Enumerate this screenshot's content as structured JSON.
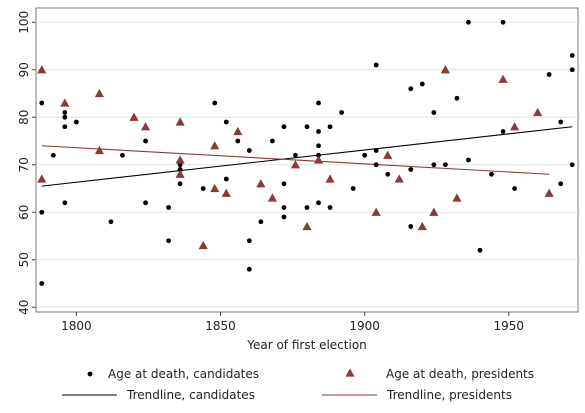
{
  "chart_data": {
    "type": "scatter",
    "title": "",
    "xlabel": "Year of first election",
    "ylabel": "",
    "xlim": [
      1786,
      1974
    ],
    "ylim": [
      39,
      103
    ],
    "xticks": [
      1800,
      1850,
      1900,
      1950
    ],
    "yticks": [
      40,
      50,
      60,
      70,
      80,
      90,
      100
    ],
    "grid": {
      "horizontal": true,
      "vertical": false
    },
    "legend": {
      "position": "bottom",
      "columns": 2
    },
    "series": [
      {
        "name": "Age at death, candidates",
        "marker": "circle",
        "color": "#000000",
        "points": [
          [
            1788,
            83
          ],
          [
            1788,
            60
          ],
          [
            1788,
            45
          ],
          [
            1792,
            72
          ],
          [
            1796,
            81
          ],
          [
            1796,
            80
          ],
          [
            1796,
            78
          ],
          [
            1796,
            62
          ],
          [
            1800,
            79
          ],
          [
            1812,
            58
          ],
          [
            1816,
            72
          ],
          [
            1824,
            75
          ],
          [
            1824,
            62
          ],
          [
            1832,
            61
          ],
          [
            1832,
            54
          ],
          [
            1836,
            70
          ],
          [
            1836,
            69
          ],
          [
            1836,
            66
          ],
          [
            1844,
            65
          ],
          [
            1848,
            83
          ],
          [
            1852,
            79
          ],
          [
            1852,
            67
          ],
          [
            1856,
            75
          ],
          [
            1860,
            73
          ],
          [
            1860,
            54
          ],
          [
            1860,
            48
          ],
          [
            1864,
            58
          ],
          [
            1868,
            75
          ],
          [
            1872,
            78
          ],
          [
            1872,
            66
          ],
          [
            1872,
            61
          ],
          [
            1872,
            59
          ],
          [
            1876,
            72
          ],
          [
            1880,
            78
          ],
          [
            1880,
            61
          ],
          [
            1884,
            83
          ],
          [
            1884,
            77
          ],
          [
            1884,
            74
          ],
          [
            1884,
            72
          ],
          [
            1884,
            62
          ],
          [
            1888,
            78
          ],
          [
            1888,
            61
          ],
          [
            1892,
            81
          ],
          [
            1896,
            65
          ],
          [
            1900,
            72
          ],
          [
            1904,
            91
          ],
          [
            1904,
            73
          ],
          [
            1904,
            70
          ],
          [
            1908,
            68
          ],
          [
            1916,
            86
          ],
          [
            1916,
            69
          ],
          [
            1916,
            57
          ],
          [
            1920,
            87
          ],
          [
            1924,
            81
          ],
          [
            1924,
            70
          ],
          [
            1928,
            70
          ],
          [
            1932,
            84
          ],
          [
            1936,
            100
          ],
          [
            1936,
            71
          ],
          [
            1940,
            52
          ],
          [
            1944,
            68
          ],
          [
            1948,
            100
          ],
          [
            1948,
            77
          ],
          [
            1952,
            65
          ],
          [
            1964,
            89
          ],
          [
            1968,
            79
          ],
          [
            1968,
            66
          ],
          [
            1972,
            93
          ],
          [
            1972,
            90
          ],
          [
            1972,
            70
          ]
        ]
      },
      {
        "name": "Age at death, presidents",
        "marker": "triangle",
        "color": "#8b3a3a",
        "points": [
          [
            1788,
            90
          ],
          [
            1788,
            67
          ],
          [
            1796,
            83
          ],
          [
            1808,
            85
          ],
          [
            1808,
            73
          ],
          [
            1820,
            80
          ],
          [
            1824,
            78
          ],
          [
            1836,
            79
          ],
          [
            1836,
            71
          ],
          [
            1836,
            68
          ],
          [
            1844,
            53
          ],
          [
            1848,
            74
          ],
          [
            1848,
            65
          ],
          [
            1852,
            64
          ],
          [
            1856,
            77
          ],
          [
            1864,
            66
          ],
          [
            1868,
            63
          ],
          [
            1876,
            70
          ],
          [
            1880,
            57
          ],
          [
            1884,
            71
          ],
          [
            1888,
            67
          ],
          [
            1904,
            60
          ],
          [
            1908,
            72
          ],
          [
            1912,
            67
          ],
          [
            1920,
            57
          ],
          [
            1924,
            60
          ],
          [
            1928,
            90
          ],
          [
            1932,
            63
          ],
          [
            1948,
            88
          ],
          [
            1952,
            78
          ],
          [
            1960,
            81
          ],
          [
            1964,
            64
          ]
        ]
      },
      {
        "name": "Trendline, candidates",
        "marker": "line",
        "color": "#000000",
        "points": [
          [
            1788,
            65.5
          ],
          [
            1972,
            78
          ]
        ]
      },
      {
        "name": "Trendline, presidents",
        "marker": "line",
        "color": "#8b3a3a",
        "points": [
          [
            1788,
            74
          ],
          [
            1964,
            68
          ]
        ]
      }
    ]
  }
}
